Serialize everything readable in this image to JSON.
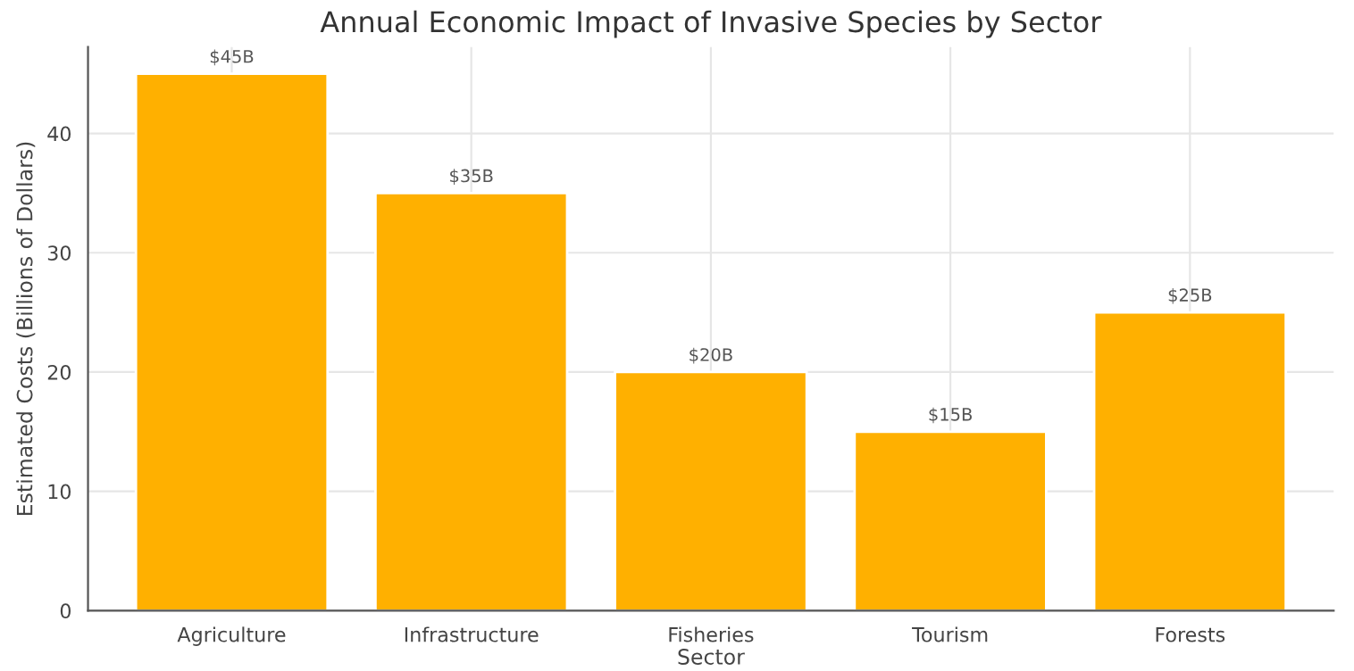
{
  "chart_data": {
    "type": "bar",
    "title": "Annual Economic Impact of Invasive Species by Sector",
    "xlabel": "Sector",
    "ylabel": "Estimated Costs (Billions of Dollars)",
    "categories": [
      "Agriculture",
      "Infrastructure",
      "Fisheries",
      "Tourism",
      "Forests"
    ],
    "values": [
      45,
      35,
      20,
      15,
      25
    ],
    "value_labels": [
      "$45B",
      "$35B",
      "$20B",
      "$15B",
      "$25B"
    ],
    "color": "#ffb000",
    "ylim": [
      0,
      47.25
    ],
    "yticks": [
      0,
      10,
      20,
      30,
      40
    ],
    "grid": true,
    "legend": false
  }
}
